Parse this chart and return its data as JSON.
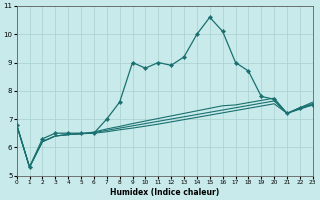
{
  "xlabel": "Humidex (Indice chaleur)",
  "background_color": "#c8eaea",
  "grid_color": "#a8d0d0",
  "line_color": "#1a7070",
  "y_main": [
    6.8,
    5.3,
    6.3,
    6.5,
    6.5,
    6.5,
    6.5,
    7.0,
    7.6,
    9.0,
    8.8,
    9.0,
    8.9,
    9.2,
    10.0,
    10.6,
    10.1,
    9.0,
    8.7,
    7.8,
    7.7,
    7.2,
    7.4,
    7.5
  ],
  "y_ref1": [
    6.8,
    5.3,
    6.2,
    6.4,
    6.45,
    6.48,
    6.5,
    6.55,
    6.62,
    6.68,
    6.75,
    6.82,
    6.9,
    6.98,
    7.06,
    7.14,
    7.22,
    7.3,
    7.38,
    7.46,
    7.54,
    7.2,
    7.35,
    7.5
  ],
  "y_ref2": [
    6.8,
    5.3,
    6.2,
    6.4,
    6.45,
    6.48,
    6.52,
    6.6,
    6.68,
    6.76,
    6.84,
    6.92,
    7.0,
    7.08,
    7.16,
    7.24,
    7.32,
    7.4,
    7.48,
    7.56,
    7.64,
    7.2,
    7.38,
    7.55
  ],
  "y_ref3": [
    6.8,
    5.3,
    6.2,
    6.4,
    6.45,
    6.48,
    6.54,
    6.65,
    6.74,
    6.84,
    6.93,
    7.02,
    7.11,
    7.2,
    7.29,
    7.38,
    7.47,
    7.5,
    7.58,
    7.66,
    7.74,
    7.2,
    7.4,
    7.6
  ],
  "xlim_min": 0,
  "xlim_max": 23,
  "ylim_min": 5,
  "ylim_max": 11,
  "yticks": [
    5,
    6,
    7,
    8,
    9,
    10,
    11
  ],
  "xticks": [
    0,
    1,
    2,
    3,
    4,
    5,
    6,
    7,
    8,
    9,
    10,
    11,
    12,
    13,
    14,
    15,
    16,
    17,
    18,
    19,
    20,
    21,
    22,
    23
  ]
}
